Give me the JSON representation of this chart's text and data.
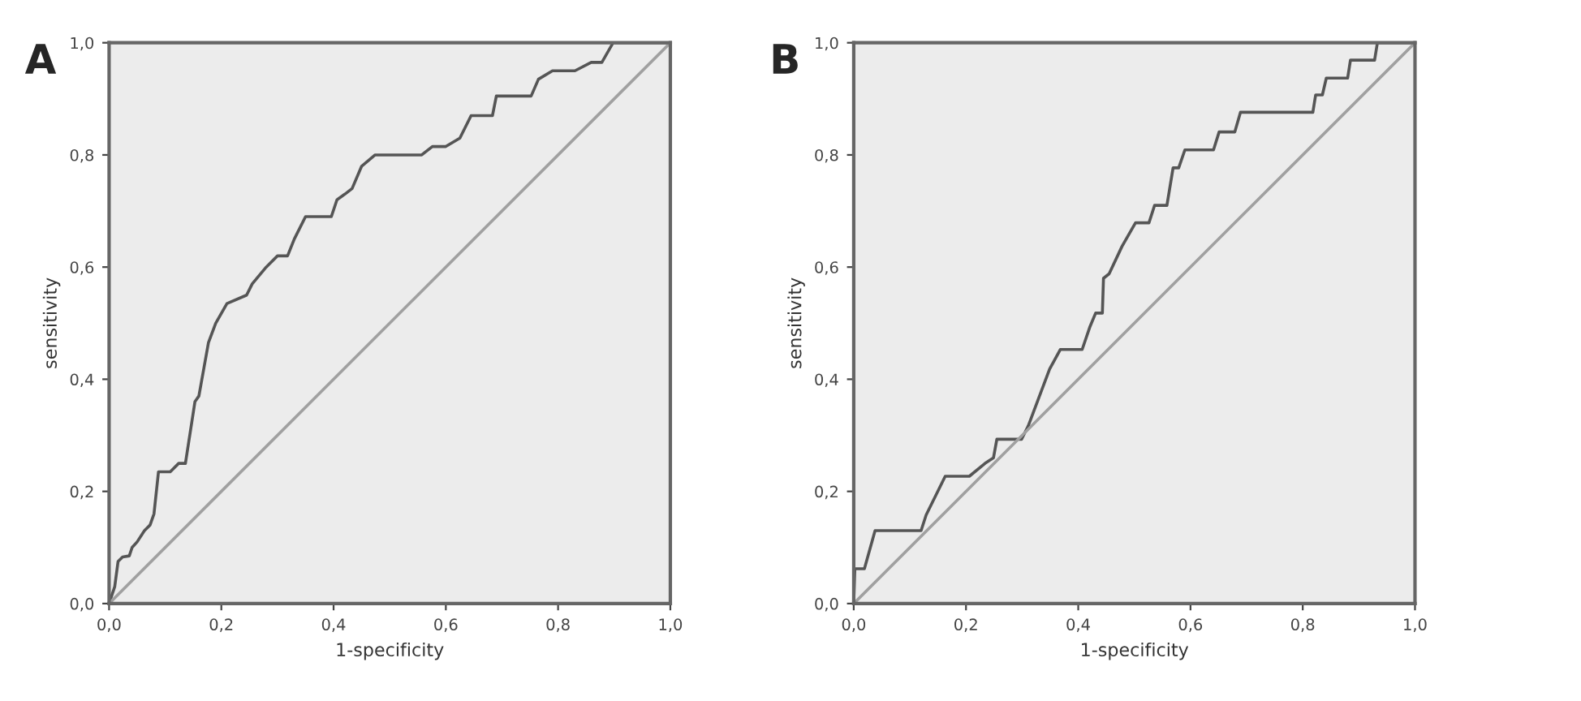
{
  "chart_data": [
    {
      "type": "line",
      "title": "A",
      "xlabel": "1-specificity",
      "ylabel": "sensitivity",
      "xlim": [
        0,
        1
      ],
      "ylim": [
        0,
        1
      ],
      "xticks": [
        {
          "value": 0,
          "label": "0,0"
        },
        {
          "value": 0.2,
          "label": "0,2"
        },
        {
          "value": 0.4,
          "label": "0,4"
        },
        {
          "value": 0.6,
          "label": "0,6"
        },
        {
          "value": 0.8,
          "label": "0,8"
        },
        {
          "value": 1,
          "label": "1,0"
        }
      ],
      "yticks": [
        {
          "value": 0,
          "label": "0,0"
        },
        {
          "value": 0.2,
          "label": "0,2"
        },
        {
          "value": 0.4,
          "label": "0,4"
        },
        {
          "value": 0.6,
          "label": "0,6"
        },
        {
          "value": 0.8,
          "label": "0,8"
        },
        {
          "value": 1,
          "label": "1,0"
        }
      ],
      "grid": false,
      "series": [
        {
          "color": "#555555",
          "x": [
            0,
            0.01,
            0.016,
            0.024,
            0.036,
            0.041,
            0.05,
            0.063,
            0.073,
            0.08,
            0.088,
            0.109,
            0.124,
            0.136,
            0.153,
            0.16,
            0.177,
            0.19,
            0.21,
            0.245,
            0.255,
            0.28,
            0.3,
            0.318,
            0.33,
            0.35,
            0.396,
            0.406,
            0.42,
            0.433,
            0.45,
            0.474,
            0.557,
            0.576,
            0.6,
            0.625,
            0.645,
            0.683,
            0.69,
            0.752,
            0.765,
            0.79,
            0.83,
            0.859,
            0.878,
            0.898,
            1
          ],
          "values": [
            0,
            0.03,
            0.075,
            0.083,
            0.085,
            0.1,
            0.11,
            0.13,
            0.14,
            0.16,
            0.235,
            0.235,
            0.25,
            0.25,
            0.36,
            0.37,
            0.465,
            0.5,
            0.535,
            0.55,
            0.57,
            0.6,
            0.62,
            0.62,
            0.65,
            0.69,
            0.69,
            0.72,
            0.73,
            0.74,
            0.78,
            0.8,
            0.8,
            0.815,
            0.815,
            0.83,
            0.87,
            0.87,
            0.905,
            0.905,
            0.935,
            0.95,
            0.95,
            0.965,
            0.965,
            1,
            1
          ]
        },
        {
          "color": "#a0a0a0",
          "x": [
            0,
            1
          ],
          "values": [
            0,
            1
          ]
        }
      ]
    },
    {
      "type": "line",
      "title": "B",
      "xlabel": "1-specificity",
      "ylabel": "sensitivity",
      "xlim": [
        0,
        1
      ],
      "ylim": [
        0,
        1
      ],
      "xticks": [
        {
          "value": 0,
          "label": "0,0"
        },
        {
          "value": 0.2,
          "label": "0,2"
        },
        {
          "value": 0.4,
          "label": "0,4"
        },
        {
          "value": 0.6,
          "label": "0,6"
        },
        {
          "value": 0.8,
          "label": "0,8"
        },
        {
          "value": 1,
          "label": "1,0"
        }
      ],
      "yticks": [
        {
          "value": 0,
          "label": "0,0"
        },
        {
          "value": 0.2,
          "label": "0,2"
        },
        {
          "value": 0.4,
          "label": "0,4"
        },
        {
          "value": 0.6,
          "label": "0,6"
        },
        {
          "value": 0.8,
          "label": "0,8"
        },
        {
          "value": 1,
          "label": "1,0"
        }
      ],
      "grid": false,
      "series": [
        {
          "color": "#555555",
          "x": [
            0,
            0.002,
            0.019,
            0.038,
            0.12,
            0.129,
            0.163,
            0.206,
            0.234,
            0.249,
            0.255,
            0.299,
            0.311,
            0.349,
            0.368,
            0.407,
            0.421,
            0.431,
            0.443,
            0.445,
            0.455,
            0.478,
            0.502,
            0.526,
            0.536,
            0.558,
            0.569,
            0.579,
            0.59,
            0.641,
            0.651,
            0.679,
            0.689,
            0.818,
            0.823,
            0.835,
            0.842,
            0.88,
            0.885,
            0.928,
            0.933,
            1
          ],
          "values": [
            0,
            0.062,
            0.062,
            0.13,
            0.13,
            0.158,
            0.227,
            0.227,
            0.25,
            0.26,
            0.293,
            0.293,
            0.317,
            0.418,
            0.453,
            0.453,
            0.494,
            0.518,
            0.518,
            0.58,
            0.588,
            0.637,
            0.679,
            0.679,
            0.71,
            0.71,
            0.777,
            0.777,
            0.809,
            0.809,
            0.841,
            0.841,
            0.876,
            0.876,
            0.907,
            0.907,
            0.937,
            0.937,
            0.969,
            0.969,
            1,
            1
          ]
        },
        {
          "color": "#a0a0a0",
          "x": [
            0,
            1
          ],
          "values": [
            0,
            1
          ]
        }
      ]
    }
  ]
}
